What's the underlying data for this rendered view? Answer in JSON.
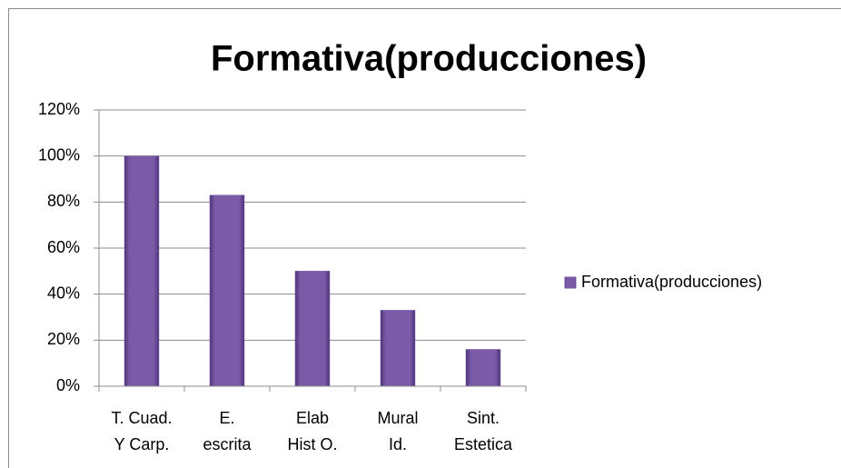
{
  "chart_data": {
    "type": "bar",
    "title": "Formativa(producciones)",
    "categories": [
      "T. Cuad.\nY Carp.",
      "E.\nescrita",
      "Elab\nHist O.",
      "Mural\nId.",
      "Sint.\nEstetica"
    ],
    "series": [
      {
        "name": "Formativa(producciones)",
        "color": "#7b5aa8",
        "values": [
          100,
          83,
          50,
          33,
          16
        ]
      }
    ],
    "ylim": [
      0,
      120
    ],
    "yticks": [
      {
        "value": 0,
        "label": "0%"
      },
      {
        "value": 20,
        "label": "20%"
      },
      {
        "value": 40,
        "label": "40%"
      },
      {
        "value": 60,
        "label": "60%"
      },
      {
        "value": 80,
        "label": "80%"
      },
      {
        "value": 100,
        "label": "100%"
      },
      {
        "value": 120,
        "label": "120%"
      }
    ],
    "grid": true,
    "legend": "right"
  }
}
